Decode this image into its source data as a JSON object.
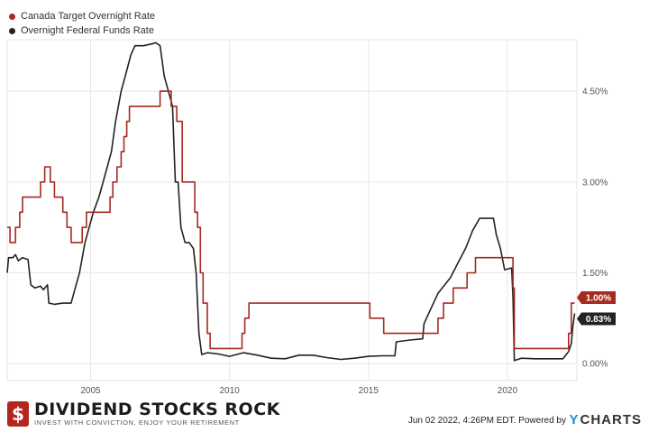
{
  "chart_data": {
    "type": "line",
    "legend_position": "top-left",
    "grid": true,
    "xlim": [
      2002.0,
      2022.5
    ],
    "ylim": [
      -0.0028,
      0.0535
    ],
    "x_ticks": [
      2005,
      2010,
      2015,
      2020
    ],
    "x_tick_labels": [
      "2005",
      "2010",
      "2015",
      "2020"
    ],
    "y_ticks": [
      0.0,
      0.015,
      0.03,
      0.045
    ],
    "y_tick_labels": [
      "0.00%",
      "1.50%",
      "3.00%",
      "4.50%"
    ],
    "series": [
      {
        "name": "Canada Target Overnight Rate",
        "color": "#a52a1f",
        "step": true,
        "end_label": "1.00%",
        "points": [
          [
            2002.0,
            0.0225
          ],
          [
            2002.1,
            0.02
          ],
          [
            2002.3,
            0.0225
          ],
          [
            2002.45,
            0.025
          ],
          [
            2002.55,
            0.0275
          ],
          [
            2003.2,
            0.03
          ],
          [
            2003.35,
            0.0325
          ],
          [
            2003.55,
            0.03
          ],
          [
            2003.7,
            0.0275
          ],
          [
            2004.0,
            0.025
          ],
          [
            2004.15,
            0.0225
          ],
          [
            2004.3,
            0.02
          ],
          [
            2004.7,
            0.0225
          ],
          [
            2004.85,
            0.025
          ],
          [
            2005.7,
            0.0275
          ],
          [
            2005.8,
            0.03
          ],
          [
            2005.95,
            0.0325
          ],
          [
            2006.1,
            0.035
          ],
          [
            2006.2,
            0.0375
          ],
          [
            2006.3,
            0.04
          ],
          [
            2006.4,
            0.0425
          ],
          [
            2007.5,
            0.045
          ],
          [
            2007.9,
            0.0425
          ],
          [
            2008.1,
            0.04
          ],
          [
            2008.3,
            0.03
          ],
          [
            2008.75,
            0.025
          ],
          [
            2008.85,
            0.0225
          ],
          [
            2008.95,
            0.015
          ],
          [
            2009.05,
            0.01
          ],
          [
            2009.2,
            0.005
          ],
          [
            2009.3,
            0.0025
          ],
          [
            2010.45,
            0.005
          ],
          [
            2010.55,
            0.0075
          ],
          [
            2010.7,
            0.01
          ],
          [
            2015.05,
            0.0075
          ],
          [
            2015.55,
            0.005
          ],
          [
            2017.5,
            0.0075
          ],
          [
            2017.7,
            0.01
          ],
          [
            2018.05,
            0.0125
          ],
          [
            2018.55,
            0.015
          ],
          [
            2018.85,
            0.0175
          ],
          [
            2020.2,
            0.0125
          ],
          [
            2020.25,
            0.0025
          ],
          [
            2022.2,
            0.005
          ],
          [
            2022.3,
            0.01
          ],
          [
            2022.42,
            0.01
          ]
        ]
      },
      {
        "name": "Overnight Federal Funds Rate",
        "color": "#222222",
        "step": false,
        "end_label": "0.83%",
        "points": [
          [
            2002.0,
            0.015
          ],
          [
            2002.05,
            0.0175
          ],
          [
            2002.2,
            0.0175
          ],
          [
            2002.3,
            0.018
          ],
          [
            2002.4,
            0.017
          ],
          [
            2002.55,
            0.0175
          ],
          [
            2002.75,
            0.0172
          ],
          [
            2002.85,
            0.013
          ],
          [
            2003.0,
            0.0125
          ],
          [
            2003.2,
            0.0128
          ],
          [
            2003.3,
            0.0122
          ],
          [
            2003.45,
            0.013
          ],
          [
            2003.5,
            0.01
          ],
          [
            2003.7,
            0.0098
          ],
          [
            2004.0,
            0.01
          ],
          [
            2004.3,
            0.01
          ],
          [
            2004.45,
            0.0125
          ],
          [
            2004.6,
            0.015
          ],
          [
            2004.8,
            0.02
          ],
          [
            2004.95,
            0.0225
          ],
          [
            2005.1,
            0.025
          ],
          [
            2005.3,
            0.0275
          ],
          [
            2005.45,
            0.03
          ],
          [
            2005.6,
            0.0325
          ],
          [
            2005.75,
            0.035
          ],
          [
            2005.9,
            0.04
          ],
          [
            2006.1,
            0.045
          ],
          [
            2006.25,
            0.0475
          ],
          [
            2006.45,
            0.051
          ],
          [
            2006.6,
            0.0525
          ],
          [
            2006.9,
            0.0525
          ],
          [
            2007.2,
            0.0528
          ],
          [
            2007.35,
            0.053
          ],
          [
            2007.5,
            0.0525
          ],
          [
            2007.65,
            0.0475
          ],
          [
            2007.8,
            0.045
          ],
          [
            2007.95,
            0.0425
          ],
          [
            2008.05,
            0.03
          ],
          [
            2008.15,
            0.03
          ],
          [
            2008.25,
            0.0225
          ],
          [
            2008.4,
            0.02
          ],
          [
            2008.55,
            0.02
          ],
          [
            2008.7,
            0.019
          ],
          [
            2008.8,
            0.015
          ],
          [
            2008.9,
            0.005
          ],
          [
            2009.0,
            0.0015
          ],
          [
            2009.2,
            0.0018
          ],
          [
            2009.6,
            0.0016
          ],
          [
            2010.0,
            0.0012
          ],
          [
            2010.5,
            0.0018
          ],
          [
            2011.0,
            0.0014
          ],
          [
            2011.5,
            0.0009
          ],
          [
            2012.0,
            0.0008
          ],
          [
            2012.5,
            0.0014
          ],
          [
            2013.0,
            0.0014
          ],
          [
            2013.5,
            0.001
          ],
          [
            2014.0,
            0.0007
          ],
          [
            2014.5,
            0.0009
          ],
          [
            2015.0,
            0.0012
          ],
          [
            2015.5,
            0.0013
          ],
          [
            2015.95,
            0.0013
          ],
          [
            2016.0,
            0.0036
          ],
          [
            2016.5,
            0.0039
          ],
          [
            2016.95,
            0.0041
          ],
          [
            2017.0,
            0.0066
          ],
          [
            2017.25,
            0.0091
          ],
          [
            2017.5,
            0.0116
          ],
          [
            2017.95,
            0.0142
          ],
          [
            2018.25,
            0.0169
          ],
          [
            2018.5,
            0.0191
          ],
          [
            2018.75,
            0.022
          ],
          [
            2019.0,
            0.024
          ],
          [
            2019.5,
            0.024
          ],
          [
            2019.6,
            0.0213
          ],
          [
            2019.75,
            0.019
          ],
          [
            2019.9,
            0.0155
          ],
          [
            2020.15,
            0.0158
          ],
          [
            2020.2,
            0.011
          ],
          [
            2020.25,
            0.0005
          ],
          [
            2020.5,
            0.0009
          ],
          [
            2021.0,
            0.0008
          ],
          [
            2021.5,
            0.0008
          ],
          [
            2022.0,
            0.0008
          ],
          [
            2022.2,
            0.002
          ],
          [
            2022.3,
            0.0033
          ],
          [
            2022.35,
            0.006
          ],
          [
            2022.42,
            0.0083
          ]
        ]
      }
    ]
  },
  "legend": [
    {
      "label": "Canada Target Overnight Rate",
      "color": "#a52a1f"
    },
    {
      "label": "Overnight Federal Funds Rate",
      "color": "#222222"
    }
  ],
  "footer": {
    "logo_name": "DIVIDEND STOCKS ROCK",
    "logo_tagline": "INVEST WITH CONVICTION, ENJOY YOUR RETIREMENT",
    "logo_mark": "$",
    "timestamp": "Jun 02 2022, 4:26PM EDT.",
    "powered_by": "Powered by",
    "brand_mark": "Y",
    "brand_name": "CHARTS"
  }
}
